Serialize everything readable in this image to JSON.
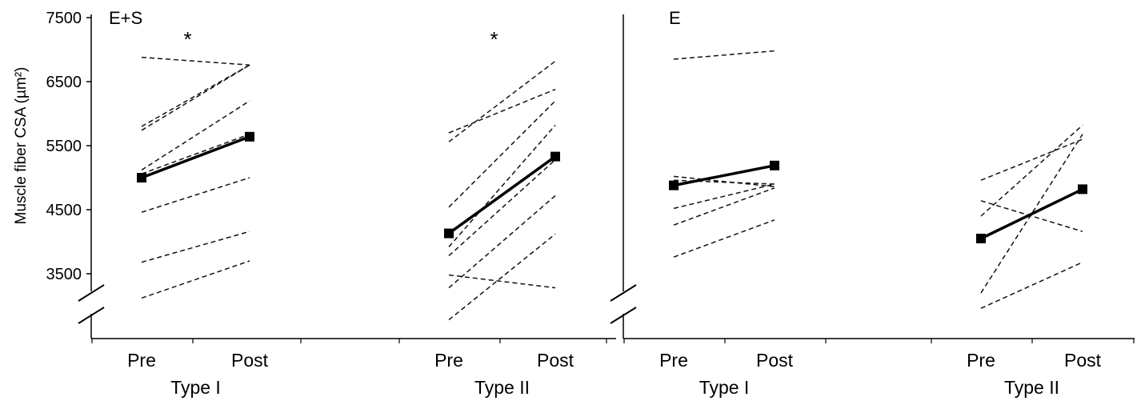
{
  "chart_data": {
    "type": "line",
    "ylabel": "Muscle fiber CSA (µm²)",
    "yticks": [
      3500,
      4500,
      5500,
      6500,
      7500
    ],
    "ylim": [
      2500,
      7500
    ],
    "axis_break": true,
    "x_tick_labels": [
      "Pre",
      "Post"
    ],
    "panels": [
      {
        "label": "E+S",
        "groups": [
          {
            "name": "Type I",
            "significance": "*",
            "mean": {
              "pre": 5000,
              "post": 5640
            },
            "individuals": [
              {
                "pre": 6880,
                "post": 6760
              },
              {
                "pre": 5800,
                "post": 6760
              },
              {
                "pre": 5740,
                "post": 6760
              },
              {
                "pre": 5120,
                "post": 6200
              },
              {
                "pre": 5060,
                "post": 5680
              },
              {
                "pre": 4460,
                "post": 5000
              },
              {
                "pre": 3680,
                "post": 4160
              },
              {
                "pre": 3120,
                "post": 3700
              }
            ]
          },
          {
            "name": "Type II",
            "significance": "*",
            "mean": {
              "pre": 4130,
              "post": 5330
            },
            "individuals": [
              {
                "pre": 5700,
                "post": 6380
              },
              {
                "pre": 5560,
                "post": 6820
              },
              {
                "pre": 4540,
                "post": 6200
              },
              {
                "pre": 3920,
                "post": 5820
              },
              {
                "pre": 3780,
                "post": 5280
              },
              {
                "pre": 3480,
                "post": 3280
              },
              {
                "pre": 3280,
                "post": 4720
              },
              {
                "pre": 2780,
                "post": 4120
              }
            ]
          }
        ]
      },
      {
        "label": "E",
        "groups": [
          {
            "name": "Type I",
            "significance": "",
            "mean": {
              "pre": 4880,
              "post": 5190
            },
            "individuals": [
              {
                "pre": 6850,
                "post": 6980
              },
              {
                "pre": 5020,
                "post": 4860
              },
              {
                "pre": 4960,
                "post": 4900
              },
              {
                "pre": 4520,
                "post": 4900
              },
              {
                "pre": 4260,
                "post": 4840
              },
              {
                "pre": 3760,
                "post": 4340
              }
            ]
          },
          {
            "name": "Type II",
            "significance": "",
            "mean": {
              "pre": 4050,
              "post": 4820
            },
            "individuals": [
              {
                "pre": 4960,
                "post": 5600
              },
              {
                "pre": 4640,
                "post": 4160
              },
              {
                "pre": 4400,
                "post": 5820
              },
              {
                "pre": 3200,
                "post": 5680
              },
              {
                "pre": 2960,
                "post": 3680
              }
            ]
          }
        ]
      }
    ]
  }
}
